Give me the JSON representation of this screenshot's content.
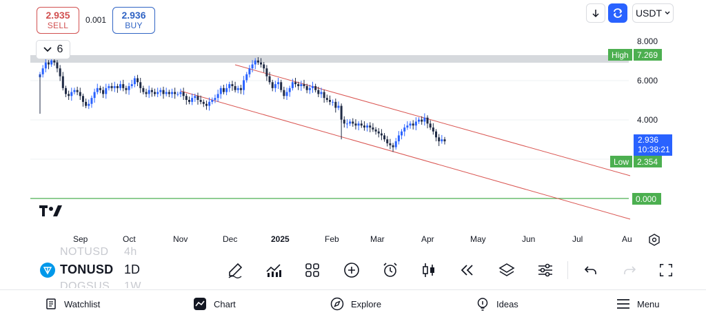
{
  "quote": {
    "sell_price": "2.935",
    "sell_label": "SELL",
    "spread": "0.001",
    "buy_price": "2.936",
    "buy_label": "BUY"
  },
  "toolbar_top": {
    "currency": "USDT",
    "indicator_count": "6"
  },
  "price_axis": {
    "ticks": [
      "8.000",
      "6.000",
      "4.000",
      "0.000"
    ],
    "high_label": "High",
    "high_value": "7.269",
    "low_label": "Low",
    "low_value": "2.354",
    "current_price": "2.936",
    "countdown": "10:38:21"
  },
  "time_axis": {
    "ticks": [
      "Sep",
      "Oct",
      "Nov",
      "Dec",
      "2025",
      "Feb",
      "Mar",
      "Apr",
      "May",
      "Jun",
      "Jul",
      "Au"
    ]
  },
  "chart_data": {
    "type": "candlestick",
    "symbol": "TONUSD",
    "interval": "1D",
    "currency": "USDT",
    "ylim": [
      -1.5,
      8.8
    ],
    "price_ticks": [
      8.0,
      6.0,
      4.0,
      0.0
    ],
    "high": 7.269,
    "low": 2.354,
    "last": 2.936,
    "time_ticks": [
      "Sep",
      "Oct",
      "Nov",
      "Dec",
      "2025",
      "Feb",
      "Mar",
      "Apr",
      "May",
      "Jun",
      "Jul",
      "Au"
    ],
    "closes": [
      6.3,
      6.6,
      6.9,
      6.8,
      7.0,
      6.9,
      6.6,
      6.2,
      5.6,
      5.3,
      5.2,
      5.4,
      5.5,
      5.4,
      5.2,
      4.9,
      4.7,
      4.8,
      5.1,
      5.4,
      5.6,
      5.5,
      5.3,
      5.6,
      5.7,
      5.6,
      5.7,
      5.6,
      5.8,
      5.6,
      5.5,
      5.7,
      5.8,
      6.1,
      5.9,
      5.6,
      5.4,
      5.3,
      5.5,
      5.4,
      5.3,
      5.4,
      5.5,
      5.3,
      5.4,
      5.3,
      5.4,
      5.3,
      5.3,
      5.4,
      5.2,
      5.0,
      4.9,
      5.1,
      5.2,
      5.0,
      4.9,
      4.8,
      4.7,
      4.9,
      5.0,
      5.1,
      5.3,
      5.6,
      5.4,
      5.6,
      5.8,
      5.7,
      5.5,
      5.6,
      5.5,
      6.0,
      6.3,
      6.6,
      6.8,
      7.0,
      6.9,
      6.8,
      6.6,
      6.2,
      5.9,
      5.6,
      5.8,
      5.9,
      5.5,
      5.2,
      5.4,
      5.6,
      5.9,
      5.8,
      5.7,
      5.8,
      5.7,
      5.5,
      5.6,
      5.7,
      5.5,
      5.3,
      5.4,
      5.1,
      5.0,
      4.9,
      4.9,
      4.6,
      4.7,
      4.0,
      3.8,
      3.8,
      3.9,
      3.8,
      3.7,
      3.8,
      3.7,
      3.6,
      3.7,
      3.6,
      3.5,
      3.4,
      3.3,
      3.2,
      3.0,
      2.8,
      2.7,
      2.6,
      2.9,
      3.2,
      3.4,
      3.6,
      3.7,
      3.8,
      3.7,
      3.9,
      4.0,
      3.9,
      4.1,
      3.8,
      3.6,
      3.4,
      3.1,
      2.9,
      3.0,
      2.9
    ]
  },
  "symbols": {
    "prev_symbol": "NOTUSD",
    "prev_interval": "4h",
    "current_symbol": "TONUSD",
    "current_interval": "1D",
    "next_symbol": "DOGSUS",
    "next_interval": "1W"
  },
  "nav": {
    "watchlist": "Watchlist",
    "chart": "Chart",
    "explore": "Explore",
    "ideas": "Ideas",
    "menu": "Menu"
  },
  "colors": {
    "sell": "#d14f4f",
    "buy": "#2f63c4",
    "accent": "#2962ff",
    "green": "#4caf50",
    "channel": "#d9534f",
    "candle": "#1f2a44",
    "candle_up": "#2962ff"
  }
}
